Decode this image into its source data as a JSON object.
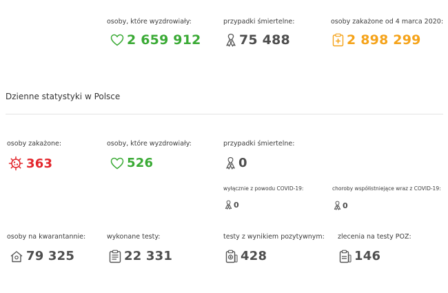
{
  "totals": {
    "recovered": {
      "label": "osoby, które wyzdrowiały:",
      "value": "2 659 912",
      "icon": "heart-icon",
      "color": "#3aaa35"
    },
    "deaths": {
      "label": "przypadki śmiertelne:",
      "value": "75 488",
      "icon": "ribbon-icon",
      "color": "#4d4d4d"
    },
    "infected": {
      "label": "osoby zakażone od 4 marca 2020:",
      "value": "2 898 299",
      "icon": "medical-clipboard-icon",
      "color": "#f5a31a"
    }
  },
  "daily": {
    "title": "Dzienne statystyki w Polsce",
    "infected": {
      "label": "osoby zakażone:",
      "value": "363",
      "icon": "virus-icon",
      "color": "#e3262c"
    },
    "recovered": {
      "label": "osoby, które wyzdrowiały:",
      "value": "526",
      "icon": "heart-icon",
      "color": "#3aaa35"
    },
    "deaths": {
      "label": "przypadki śmiertelne:",
      "value": "0",
      "icon": "ribbon-icon"
    },
    "deaths_covid_only": {
      "label": "wyłącznie z powodu COVID-19:",
      "value": "0",
      "icon": "ribbon-icon"
    },
    "deaths_comorbid": {
      "label": "choroby współistniejące wraz z COVID-19:",
      "value": "0",
      "icon": "ribbon-icon"
    },
    "quarantine": {
      "label": "osoby na kwarantannie:",
      "value": "79 325",
      "icon": "house-icon"
    },
    "tests": {
      "label": "wykonane testy:",
      "value": "22 331",
      "icon": "clipboard-list-icon"
    },
    "positive_tests": {
      "label": "testy z wynikiem pozytywnym:",
      "value": "428",
      "icon": "clipboard-plus-icon"
    },
    "poz_orders": {
      "label": "zlecenia na testy POZ:",
      "value": "146",
      "icon": "clipboard-poz-icon"
    }
  }
}
